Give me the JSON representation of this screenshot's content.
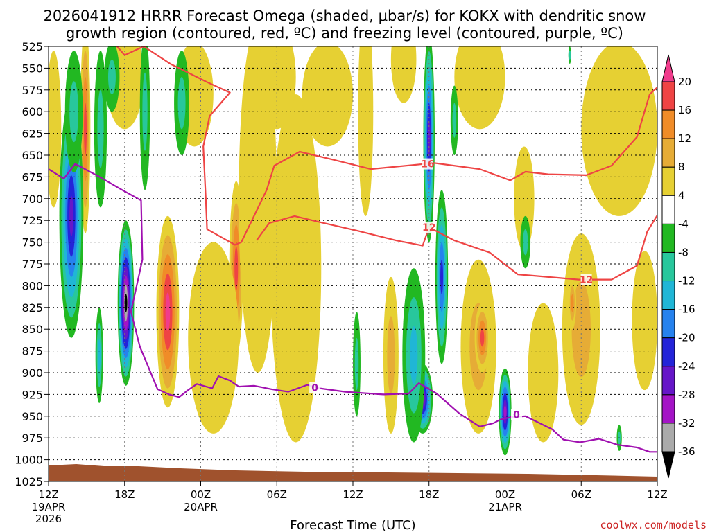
{
  "chart_data": {
    "type": "time-height-section",
    "title_line1": "2026041912 HRRR Forecast Omega (shaded, μbar/s) for KOKX with dendritic snow",
    "title_line2": "growth region (contoured, red, ºC) and freezing level (contoured, purple, ºC)",
    "xlabel": "Forecast Time (UTC)",
    "credit": "coolwx.com/models",
    "y_levels": [
      "525",
      "550",
      "575",
      "600",
      "625",
      "650",
      "675",
      "700",
      "725",
      "750",
      "775",
      "800",
      "825",
      "850",
      "875",
      "900",
      "925",
      "950",
      "975",
      "1000",
      "1025"
    ],
    "y_range_hpa": [
      525,
      1025
    ],
    "x_range_hours": [
      0,
      48
    ],
    "x_ticks": [
      {
        "hour": 0,
        "label": "12Z",
        "date": "19APR",
        "year": "2026"
      },
      {
        "hour": 6,
        "label": "18Z",
        "date": "",
        "year": ""
      },
      {
        "hour": 12,
        "label": "00Z",
        "date": "20APR",
        "year": ""
      },
      {
        "hour": 18,
        "label": "06Z",
        "date": "",
        "year": ""
      },
      {
        "hour": 24,
        "label": "12Z",
        "date": "",
        "year": ""
      },
      {
        "hour": 30,
        "label": "18Z",
        "date": "",
        "year": ""
      },
      {
        "hour": 36,
        "label": "00Z",
        "date": "21APR",
        "year": ""
      },
      {
        "hour": 42,
        "label": "06Z",
        "date": "",
        "year": ""
      },
      {
        "hour": 48,
        "label": "12Z",
        "date": "",
        "year": ""
      }
    ],
    "colorbar": {
      "labels": [
        "20",
        "16",
        "12",
        "8",
        "4",
        "-4",
        "-8",
        "-12",
        "-16",
        "-20",
        "-24",
        "-28",
        "-32",
        "-36"
      ],
      "colors": [
        "#f03c8c",
        "#ef4444",
        "#f08c28",
        "#e6ac36",
        "#e6d033",
        "#ffffff",
        "#22b822",
        "#28c79c",
        "#20b6d6",
        "#2682ee",
        "#2424d8",
        "#6616c8",
        "#a414c6",
        "#aaaaaa",
        "#000000"
      ]
    },
    "series": [
      {
        "name": "dgz-temp-16",
        "label": "16",
        "color": "#ee4444",
        "points": [
          [
            5.4,
            525
          ],
          [
            6.0,
            535
          ],
          [
            7.5,
            525
          ],
          [
            9.6,
            545
          ],
          [
            12.5,
            566
          ],
          [
            14.3,
            578
          ],
          [
            12.7,
            605
          ],
          [
            12.2,
            640
          ],
          [
            12.4,
            700
          ],
          [
            12.5,
            735
          ],
          [
            14.7,
            753
          ],
          [
            15.2,
            750
          ],
          [
            17.2,
            690
          ],
          [
            17.8,
            662
          ],
          [
            19.8,
            646
          ],
          [
            22.4,
            655
          ],
          [
            25.4,
            666
          ],
          [
            30.4,
            659
          ],
          [
            34.0,
            666
          ],
          [
            36.4,
            679
          ],
          [
            37.6,
            669
          ],
          [
            39.4,
            672
          ],
          [
            42.4,
            673
          ],
          [
            44.4,
            662
          ],
          [
            46.4,
            629
          ],
          [
            47.4,
            580
          ],
          [
            48.0,
            572
          ]
        ]
      },
      {
        "name": "dgz-temp-12",
        "label": "12",
        "color": "#ee4444",
        "points": [
          [
            16.4,
            748
          ],
          [
            17.4,
            728
          ],
          [
            19.4,
            720
          ],
          [
            21.4,
            727
          ],
          [
            24.4,
            737
          ],
          [
            27.4,
            748
          ],
          [
            29.5,
            754
          ],
          [
            30.0,
            733
          ],
          [
            32.0,
            748
          ],
          [
            34.8,
            762
          ],
          [
            37.0,
            787
          ],
          [
            41.8,
            793
          ],
          [
            44.4,
            793
          ],
          [
            46.4,
            777
          ],
          [
            47.2,
            738
          ],
          [
            48.0,
            719
          ]
        ]
      },
      {
        "name": "freezing-level-0",
        "label": "0",
        "color": "#a010b0",
        "points": [
          [
            0,
            666
          ],
          [
            1.2,
            677
          ],
          [
            2.1,
            660
          ],
          [
            3.9,
            674
          ],
          [
            5.8,
            690
          ],
          [
            7.3,
            702
          ],
          [
            7.4,
            770
          ],
          [
            6.5,
            830
          ],
          [
            7.2,
            870
          ],
          [
            8.6,
            919
          ],
          [
            9.5,
            925
          ],
          [
            10.3,
            928
          ],
          [
            11.0,
            920
          ],
          [
            11.7,
            913
          ],
          [
            12.9,
            918
          ],
          [
            13.4,
            904
          ],
          [
            14.3,
            909
          ],
          [
            15.0,
            916
          ],
          [
            16.2,
            915
          ],
          [
            17.6,
            919
          ],
          [
            18.9,
            922
          ],
          [
            20.4,
            914
          ],
          [
            21.4,
            918
          ],
          [
            23.4,
            922
          ],
          [
            26.4,
            925
          ],
          [
            28.4,
            924
          ],
          [
            29.2,
            912
          ],
          [
            30.6,
            924
          ],
          [
            32.4,
            947
          ],
          [
            34.0,
            962
          ],
          [
            35.1,
            958
          ],
          [
            35.6,
            954
          ],
          [
            36.5,
            951
          ],
          [
            37.6,
            950
          ],
          [
            39.7,
            965
          ],
          [
            40.6,
            977
          ],
          [
            41.9,
            980
          ],
          [
            43.4,
            976
          ],
          [
            44.9,
            983
          ],
          [
            46.4,
            986
          ],
          [
            47.4,
            991
          ],
          [
            48.0,
            991
          ]
        ]
      }
    ],
    "contour_labels": [
      {
        "text": "16",
        "hour": 29.9,
        "hpa": 660,
        "color": "#ee4444"
      },
      {
        "text": "12",
        "hour": 30.0,
        "hpa": 733,
        "color": "#ee4444"
      },
      {
        "text": "12",
        "hour": 42.4,
        "hpa": 793,
        "color": "#ee4444"
      },
      {
        "text": "0",
        "hour": 21.0,
        "hpa": 917,
        "color": "#a010b0"
      },
      {
        "text": "0",
        "hour": 36.9,
        "hpa": 948,
        "color": "#a010b0"
      }
    ],
    "omega_features": [
      {
        "name": "up-1",
        "hour": 1.8,
        "hpa": 720,
        "rx": 0.95,
        "ry": 140,
        "value": -27
      },
      {
        "name": "up-2",
        "hour": 6.1,
        "hpa": 820,
        "rx": 0.65,
        "ry": 95,
        "value": -38
      },
      {
        "name": "up-3",
        "hour": 4.0,
        "hpa": 880,
        "rx": 0.3,
        "ry": 55,
        "value": -12
      },
      {
        "name": "up-4",
        "hour": 2.0,
        "hpa": 600,
        "rx": 0.7,
        "ry": 70,
        "value": -8
      },
      {
        "name": "up-5",
        "hour": 4.1,
        "hpa": 620,
        "rx": 0.5,
        "ry": 90,
        "value": -9
      },
      {
        "name": "up-6",
        "hour": 7.6,
        "hpa": 600,
        "rx": 0.4,
        "ry": 90,
        "value": -8
      },
      {
        "name": "up-7",
        "hour": 5.0,
        "hpa": 560,
        "rx": 0.6,
        "ry": 40,
        "value": -8
      },
      {
        "name": "up-8",
        "hour": 10.5,
        "hpa": 590,
        "rx": 0.6,
        "ry": 60,
        "value": -8
      },
      {
        "name": "up-9",
        "hour": 24.3,
        "hpa": 890,
        "rx": 0.3,
        "ry": 60,
        "value": -8
      },
      {
        "name": "up-10",
        "hour": 29.5,
        "hpa": 930,
        "rx": 0.8,
        "ry": 40,
        "value": -28
      },
      {
        "name": "up-11",
        "hour": 28.8,
        "hpa": 880,
        "rx": 0.9,
        "ry": 100,
        "value": -12
      },
      {
        "name": "up-12",
        "hour": 30.0,
        "hpa": 630,
        "rx": 0.45,
        "ry": 120,
        "value": -24
      },
      {
        "name": "up-13",
        "hour": 31.0,
        "hpa": 790,
        "rx": 0.5,
        "ry": 100,
        "value": -20
      },
      {
        "name": "up-14",
        "hour": 36.0,
        "hpa": 945,
        "rx": 0.5,
        "ry": 50,
        "value": -28
      },
      {
        "name": "up-15",
        "hour": 37.6,
        "hpa": 750,
        "rx": 0.4,
        "ry": 30,
        "value": -8
      },
      {
        "name": "up-16",
        "hour": 32.0,
        "hpa": 610,
        "rx": 0.3,
        "ry": 40,
        "value": -8
      },
      {
        "name": "up-17",
        "hour": 45.0,
        "hpa": 975,
        "rx": 0.2,
        "ry": 15,
        "value": -8
      },
      {
        "name": "up-18",
        "hour": 41.1,
        "hpa": 535,
        "rx": 0.1,
        "ry": 10,
        "value": -8
      },
      {
        "name": "down-1",
        "hour": 2.9,
        "hpa": 620,
        "rx": 0.4,
        "ry": 120,
        "value": 18
      },
      {
        "name": "down-2",
        "hour": 9.4,
        "hpa": 830,
        "rx": 0.9,
        "ry": 110,
        "value": 24
      },
      {
        "name": "down-3",
        "hour": 14.8,
        "hpa": 780,
        "rx": 0.55,
        "ry": 100,
        "value": 17
      },
      {
        "name": "down-4",
        "hour": 0.4,
        "hpa": 620,
        "rx": 0.6,
        "ry": 90,
        "value": 6
      },
      {
        "name": "down-5",
        "hour": 6.0,
        "hpa": 560,
        "rx": 1.5,
        "ry": 60,
        "value": 7
      },
      {
        "name": "down-6",
        "hour": 11.5,
        "hpa": 580,
        "rx": 1.5,
        "ry": 60,
        "value": 7
      },
      {
        "name": "down-7",
        "hour": 13.0,
        "hpa": 860,
        "rx": 2.0,
        "ry": 110,
        "value": 6
      },
      {
        "name": "down-8",
        "hour": 16.5,
        "hpa": 700,
        "rx": 1.5,
        "ry": 200,
        "value": 6
      },
      {
        "name": "down-9",
        "hour": 19.5,
        "hpa": 780,
        "rx": 2.0,
        "ry": 200,
        "value": 5
      },
      {
        "name": "down-10",
        "hour": 18.0,
        "hpa": 560,
        "rx": 1.5,
        "ry": 60,
        "value": 5
      },
      {
        "name": "down-11",
        "hour": 22.0,
        "hpa": 580,
        "rx": 2.0,
        "ry": 60,
        "value": 5
      },
      {
        "name": "down-12",
        "hour": 25.0,
        "hpa": 600,
        "rx": 0.6,
        "ry": 120,
        "value": 5
      },
      {
        "name": "down-13",
        "hour": 28.0,
        "hpa": 540,
        "rx": 1.0,
        "ry": 50,
        "value": 6
      },
      {
        "name": "down-14",
        "hour": 27.0,
        "hpa": 880,
        "rx": 0.6,
        "ry": 90,
        "value": 8
      },
      {
        "name": "down-15",
        "hour": 33.9,
        "hpa": 870,
        "rx": 1.4,
        "ry": 100,
        "value": 8
      },
      {
        "name": "down-16",
        "hour": 34.2,
        "hpa": 860,
        "rx": 0.6,
        "ry": 40,
        "value": 17
      },
      {
        "name": "down-17",
        "hour": 42.0,
        "hpa": 850,
        "rx": 1.5,
        "ry": 110,
        "value": 8
      },
      {
        "name": "down-18",
        "hour": 41.3,
        "hpa": 820,
        "rx": 0.3,
        "ry": 30,
        "value": 13
      },
      {
        "name": "down-19",
        "hour": 39.0,
        "hpa": 900,
        "rx": 1.2,
        "ry": 80,
        "value": 5
      },
      {
        "name": "down-20",
        "hour": 47.0,
        "hpa": 840,
        "rx": 1.0,
        "ry": 80,
        "value": 5
      },
      {
        "name": "down-21",
        "hour": 45.0,
        "hpa": 620,
        "rx": 3.0,
        "ry": 100,
        "value": 5
      },
      {
        "name": "down-22",
        "hour": 34.0,
        "hpa": 560,
        "rx": 2.0,
        "ry": 60,
        "value": 5
      },
      {
        "name": "down-23",
        "hour": 37.5,
        "hpa": 700,
        "rx": 0.8,
        "ry": 60,
        "value": 5
      }
    ],
    "terrain_color": "#a0522d"
  }
}
